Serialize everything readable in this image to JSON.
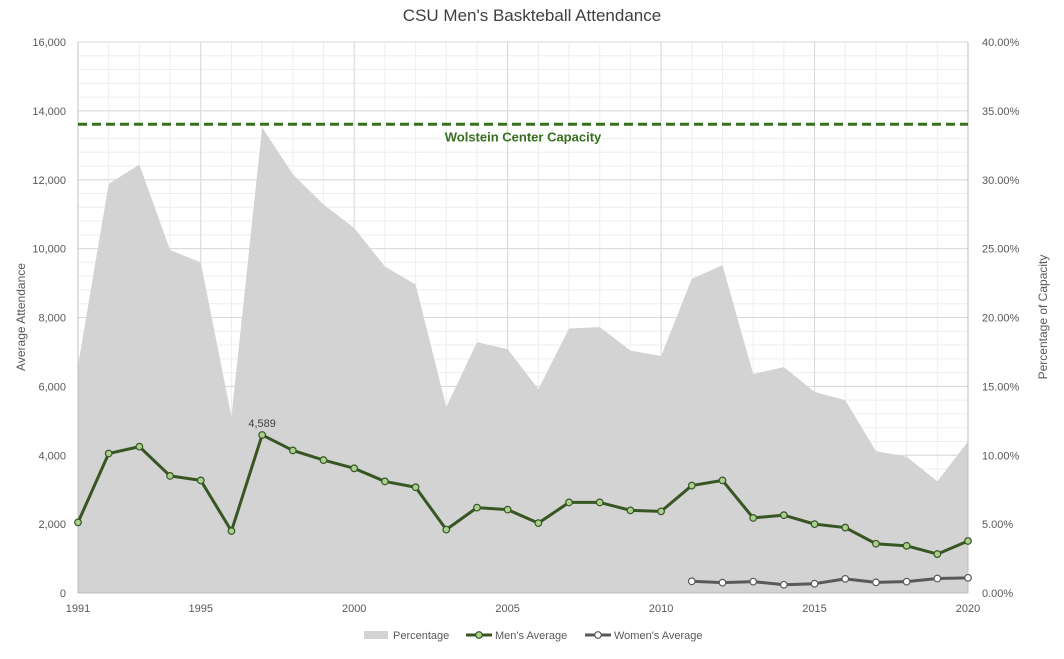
{
  "chart_data": {
    "type": "line",
    "title": "CSU Men's Baskteball Attendance",
    "ylabel": "Average Attendance",
    "y2label": "Percentage of Capacity",
    "x": [
      1991,
      1992,
      1993,
      1994,
      1995,
      1996,
      1997,
      1998,
      1999,
      2000,
      2001,
      2002,
      2003,
      2004,
      2005,
      2006,
      2007,
      2008,
      2009,
      2010,
      2011,
      2012,
      2013,
      2014,
      2015,
      2016,
      2017,
      2018,
      2019,
      2020
    ],
    "xticks": [
      "1991",
      "1995",
      "2000",
      "2005",
      "2010",
      "2015",
      "2020"
    ],
    "xtick_values": [
      1991,
      1995,
      2000,
      2005,
      2010,
      2015,
      2020
    ],
    "xlim": [
      1991,
      2020
    ],
    "ylim": [
      0,
      16000
    ],
    "yticks": [
      "0",
      "2,000",
      "4,000",
      "6,000",
      "8,000",
      "10,000",
      "12,000",
      "14,000",
      "16,000"
    ],
    "y2lim": [
      0,
      0.4
    ],
    "y2ticks": [
      "0.00%",
      "5.00%",
      "10.00%",
      "15.00%",
      "20.00%",
      "25.00%",
      "30.00%",
      "35.00%",
      "40.00%"
    ],
    "grid": true,
    "legend_position": "bottom",
    "series": [
      {
        "name": "Percentage",
        "type": "area",
        "axis": "right",
        "color": "#d3d3d3",
        "values": [
          0.165,
          0.297,
          0.311,
          0.249,
          0.24,
          0.128,
          0.338,
          0.304,
          0.282,
          0.265,
          0.237,
          0.224,
          0.135,
          0.182,
          0.177,
          0.148,
          0.192,
          0.193,
          0.176,
          0.172,
          0.228,
          0.238,
          0.159,
          0.164,
          0.146,
          0.14,
          0.103,
          0.099,
          0.081,
          0.11
        ]
      },
      {
        "name": "Men's Average",
        "type": "line",
        "axis": "left",
        "color": "#375623",
        "marker_fill": "#a9d08e",
        "values": [
          2050,
          4050,
          4250,
          3400,
          3270,
          1800,
          4589,
          4140,
          3860,
          3620,
          3240,
          3070,
          1840,
          2480,
          2420,
          2030,
          2630,
          2630,
          2400,
          2370,
          3120,
          3270,
          2180,
          2260,
          2000,
          1900,
          1430,
          1370,
          1130,
          1510
        ]
      },
      {
        "name": "Women's Average",
        "type": "line",
        "axis": "left",
        "color": "#595959",
        "marker_fill": "#ffffff",
        "values": [
          null,
          null,
          null,
          null,
          null,
          null,
          null,
          null,
          null,
          null,
          null,
          null,
          null,
          null,
          null,
          null,
          null,
          null,
          null,
          null,
          340,
          300,
          330,
          240,
          270,
          410,
          310,
          330,
          420,
          440
        ]
      }
    ],
    "reference_line": {
      "label": "Wolstein Center Capacity",
      "value": 13610,
      "color": "#38701f"
    },
    "annotations": [
      {
        "text": "4,589",
        "x": 1997,
        "y": 4589
      }
    ]
  }
}
